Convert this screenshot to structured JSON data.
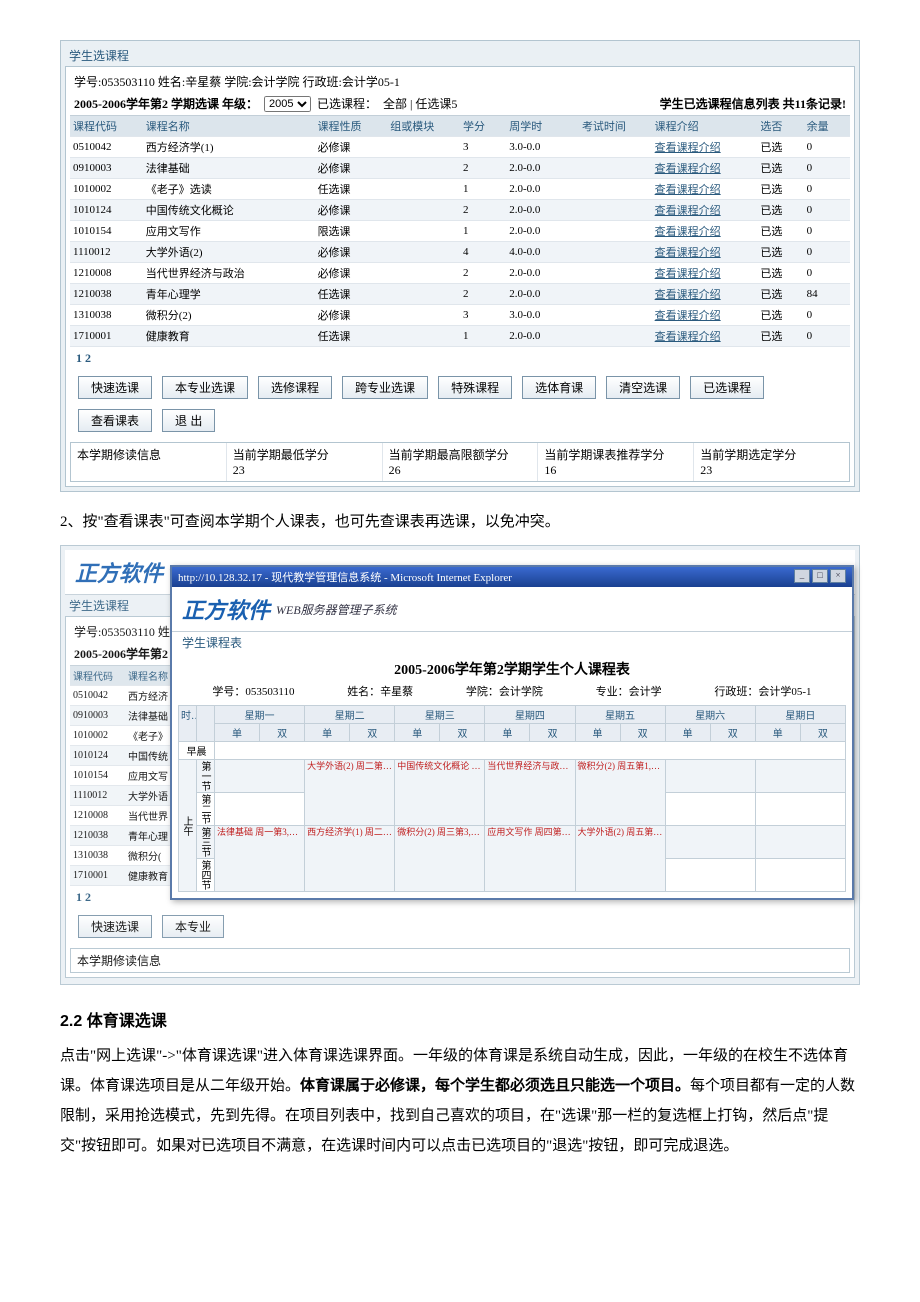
{
  "panel1": {
    "title": "学生选课程",
    "info": "学号:053503110  姓名:辛星蔡  学院:会计学院  行政班:会计学05-1",
    "sem": "2005-2006学年第2 学期选课  年级：",
    "year": "2005",
    "already_label": "已选课程：",
    "already_value": "全部 | 任选课5",
    "right_line": "学生已选课程信息列表 共11条记录!",
    "headers": [
      "课程代码",
      "课程名称",
      "课程性质",
      "组或模块",
      "学分",
      "周学时",
      "考试时间",
      "课程介绍",
      "选否",
      "余量"
    ],
    "rows": [
      [
        "0510042",
        "西方经济学(1)",
        "必修课",
        "",
        "3",
        "3.0-0.0",
        "",
        "查看课程介绍",
        "已选",
        "0"
      ],
      [
        "0910003",
        "法律基础",
        "必修课",
        "",
        "2",
        "2.0-0.0",
        "",
        "查看课程介绍",
        "已选",
        "0"
      ],
      [
        "1010002",
        "《老子》选读",
        "任选课",
        "",
        "1",
        "2.0-0.0",
        "",
        "查看课程介绍",
        "已选",
        "0"
      ],
      [
        "1010124",
        "中国传统文化概论",
        "必修课",
        "",
        "2",
        "2.0-0.0",
        "",
        "查看课程介绍",
        "已选",
        "0"
      ],
      [
        "1010154",
        "应用文写作",
        "限选课",
        "",
        "1",
        "2.0-0.0",
        "",
        "查看课程介绍",
        "已选",
        "0"
      ],
      [
        "1110012",
        "大学外语(2)",
        "必修课",
        "",
        "4",
        "4.0-0.0",
        "",
        "查看课程介绍",
        "已选",
        "0"
      ],
      [
        "1210008",
        "当代世界经济与政治",
        "必修课",
        "",
        "2",
        "2.0-0.0",
        "",
        "查看课程介绍",
        "已选",
        "0"
      ],
      [
        "1210038",
        "青年心理学",
        "任选课",
        "",
        "2",
        "2.0-0.0",
        "",
        "查看课程介绍",
        "已选",
        "84"
      ],
      [
        "1310038",
        "微积分(2)",
        "必修课",
        "",
        "3",
        "3.0-0.0",
        "",
        "查看课程介绍",
        "已选",
        "0"
      ],
      [
        "1710001",
        "健康教育",
        "任选课",
        "",
        "1",
        "2.0-0.0",
        "",
        "查看课程介绍",
        "已选",
        "0"
      ]
    ],
    "pagenums": "1 2",
    "buttons": [
      "快速选课",
      "本专业选课",
      "选修课程",
      "跨专业选课",
      "特殊课程",
      "选体育课",
      "清空选课",
      "已选课程",
      "查看课表",
      "退 出"
    ],
    "footer_labels": [
      "本学期修读信息",
      "当前学期最低学分",
      "当前学期最高限额学分",
      "当前学期课表推荐学分",
      "当前学期选定学分"
    ],
    "footer_vals": [
      "",
      "23",
      "26",
      "16",
      "23"
    ]
  },
  "instr2": "2、按\"查看课表\"可查阅本学期个人课表，也可先查课表再选课，以免冲突。",
  "under_rows": [
    [
      "0510042",
      "西方经济"
    ],
    [
      "0910003",
      "法律基础"
    ],
    [
      "1010002",
      "《老子》"
    ],
    [
      "1010124",
      "中国传统"
    ],
    [
      "1010154",
      "应用文写"
    ],
    [
      "1110012",
      "大学外语"
    ],
    [
      "1210008",
      "当代世界"
    ],
    [
      "1210038",
      "青年心理"
    ],
    [
      "1310038",
      "微积分("
    ],
    [
      "1710001",
      "健康教育"
    ]
  ],
  "overlay": {
    "url": "http://10.128.32.17 - 现代教学管理信息系统 - Microsoft Internet Explorer",
    "brand": "正方软件",
    "brand_tag": "WEB服务器管理子系统",
    "subtitle": "学生课程表",
    "sched_title": "2005-2006学年第2学期学生个人课程表",
    "info": {
      "id": "学号：053503110",
      "name": "姓名：辛星蔡",
      "college": "学院：会计学院",
      "major": "专业：会计学",
      "class": "行政班：会计学05-1"
    },
    "days": [
      "星期一",
      "星期二",
      "星期三",
      "星期四",
      "星期五",
      "星期六",
      "星期日"
    ],
    "sub": [
      "单",
      "双"
    ],
    "time_col": "时间",
    "morning": "早晨",
    "am": "上午",
    "periods": [
      "第一节",
      "第二节",
      "第三节",
      "第四节"
    ],
    "cells": {
      "r1_tue": "大学外语(2)\n周二第1,2节{第1-18周}\n王莲",
      "r1_wed": "中国传统文化概论\n周三第1,2节{第1-18周}\n何群",
      "r1_thu": "当代世界经济与政治\n周四第1,2节{第1-18周}\n王雪梅",
      "r1_fri": "微积分(2)\n周五第1,2节{第1-18周}\n贺今",
      "r2_tue": "209(2005-2006-2)-1110012-129801-1",
      "r2_wed": "十教(2005-2006-2)-1010124-110405-1",
      "r2_thu": "二教(2005-2006-2)-1210008-148702-1",
      "r2_fri": "四教(2005-2006-2)-1310038-139401-2",
      "r3_mon": "法律基础\n周一第3,4节{第1-18周}\n邢人玮",
      "r3_tue": "西方经济学(1)\n周二第3,4节{第1-18周}\n邹商",
      "r3_wed": "微积分(2)\n周三第3,4节{第1-18周}\n贺今",
      "r3_thu": "应用文写作\n周四第3,4节{第1-18周}\n吴小宿",
      "r3_fri": "大学外语(2)\n周五第3,4节{第1-18周}\n王莲",
      "r4_mon": "七教(2005-2006-2)-0910003-",
      "r4_tue": "十教(2005-2006-2)-0510042-",
      "r4_wed": "四教(2005-2006-2)-1310038-",
      "r4_thu": "九教(2005-2006-2)-1010154-118701-4",
      "r4_fri": "209(2005-2006-2)-1110012-129801-1"
    }
  },
  "section_h": "2.2 体育课选课",
  "body": {
    "p1a": "点击\"网上选课\"->\"体育课选课\"进入体育课选课界面。一年级的体育课是系统自动生成，因此，一年级的在校生不选体育课。体育课选项目是从二年级开始。",
    "p1b": "体育课属于必修课，每个学生都必须选且只能选一个项目。",
    "p1c": "每个项目都有一定的人数限制，采用抢选模式，先到先得。在项目列表中，找到自己喜欢的项目，在\"选课\"那一栏的复选框上打钩，然后点\"提交\"按钮即可。如果对已选项目不满意，在选课时间内可以点击已选项目的\"退选\"按钮，即可完成退选。"
  },
  "top_brand": "正方软件",
  "top_brand_tag": "WEB服务器管理子系统"
}
